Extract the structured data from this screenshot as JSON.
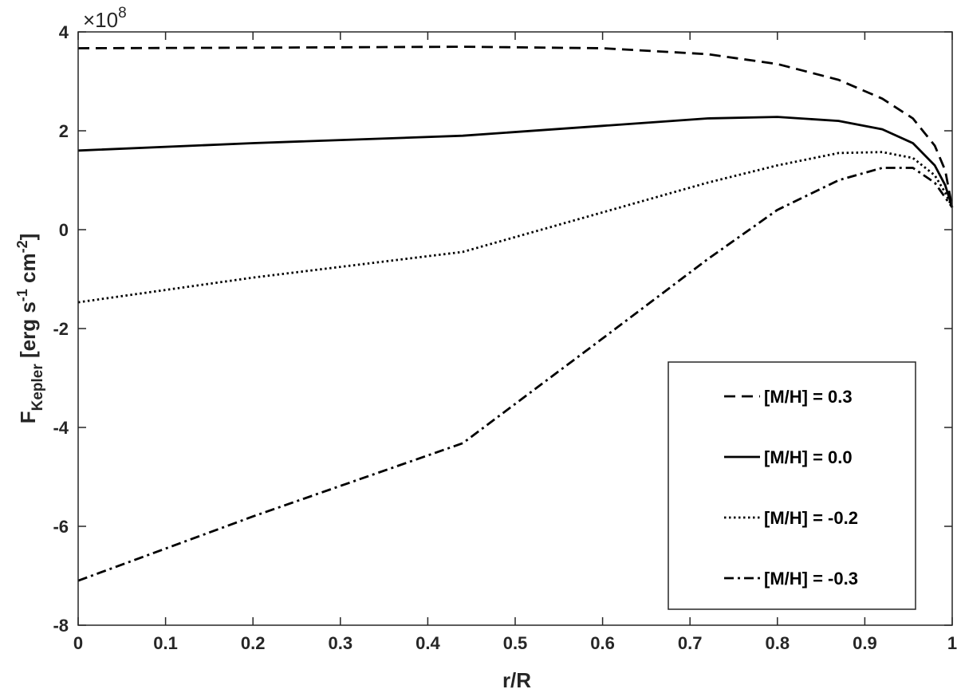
{
  "chart_data": {
    "type": "line",
    "xlabel": "r/R",
    "ylabel_main": "F",
    "ylabel_sub": "Kepler",
    "ylabel_units": " [erg s",
    "ylabel_exp1": "-1",
    "ylabel_cm": " cm",
    "ylabel_exp2": "-2",
    "ylabel_close": "]",
    "y_multiplier_prefix": "×10",
    "y_multiplier_exp": "8",
    "xlim": [
      0,
      1
    ],
    "ylim": [
      -8,
      4
    ],
    "x_ticks": [
      0,
      0.1,
      0.2,
      0.3,
      0.4,
      0.5,
      0.6,
      0.7,
      0.8,
      0.9,
      1
    ],
    "x_tick_labels": [
      "0",
      "0.1",
      "0.2",
      "0.3",
      "0.4",
      "0.5",
      "0.6",
      "0.7",
      "0.8",
      "0.9",
      "1"
    ],
    "y_ticks": [
      -8,
      -6,
      -4,
      -2,
      0,
      2,
      4
    ],
    "y_tick_labels": [
      "-8",
      "-6",
      "-4",
      "-2",
      "0",
      "2",
      "4"
    ],
    "grid": false,
    "legend_position": "lower-right",
    "series": [
      {
        "name": "[M/H] = 0.3",
        "style": "dashed",
        "color": "#000000",
        "x": [
          0,
          0.2,
          0.44,
          0.6,
          0.72,
          0.8,
          0.87,
          0.92,
          0.955,
          0.98,
          0.992,
          1.0
        ],
        "y": [
          3.67,
          3.68,
          3.7,
          3.67,
          3.55,
          3.35,
          3.03,
          2.65,
          2.25,
          1.7,
          1.2,
          0.45
        ]
      },
      {
        "name": "[M/H] = 0.0",
        "style": "solid",
        "color": "#000000",
        "x": [
          0,
          0.2,
          0.44,
          0.6,
          0.72,
          0.8,
          0.87,
          0.92,
          0.955,
          0.98,
          0.992,
          1.0
        ],
        "y": [
          1.6,
          1.75,
          1.9,
          2.1,
          2.25,
          2.28,
          2.2,
          2.03,
          1.75,
          1.3,
          0.9,
          0.45
        ]
      },
      {
        "name": "[M/H] = -0.2",
        "style": "dotted",
        "color": "#000000",
        "x": [
          0,
          0.2,
          0.44,
          0.6,
          0.72,
          0.8,
          0.87,
          0.92,
          0.955,
          0.98,
          0.992,
          1.0
        ],
        "y": [
          -1.47,
          -0.97,
          -0.45,
          0.35,
          0.95,
          1.3,
          1.55,
          1.57,
          1.45,
          1.1,
          0.75,
          0.45
        ]
      },
      {
        "name": "[M/H] = -0.3",
        "style": "dashdot",
        "color": "#000000",
        "x": [
          0,
          0.2,
          0.44,
          0.6,
          0.72,
          0.8,
          0.87,
          0.92,
          0.955,
          0.98,
          0.992,
          1.0
        ],
        "y": [
          -7.1,
          -5.8,
          -4.32,
          -2.2,
          -0.6,
          0.4,
          1.0,
          1.25,
          1.25,
          0.95,
          0.65,
          0.45
        ]
      }
    ]
  }
}
